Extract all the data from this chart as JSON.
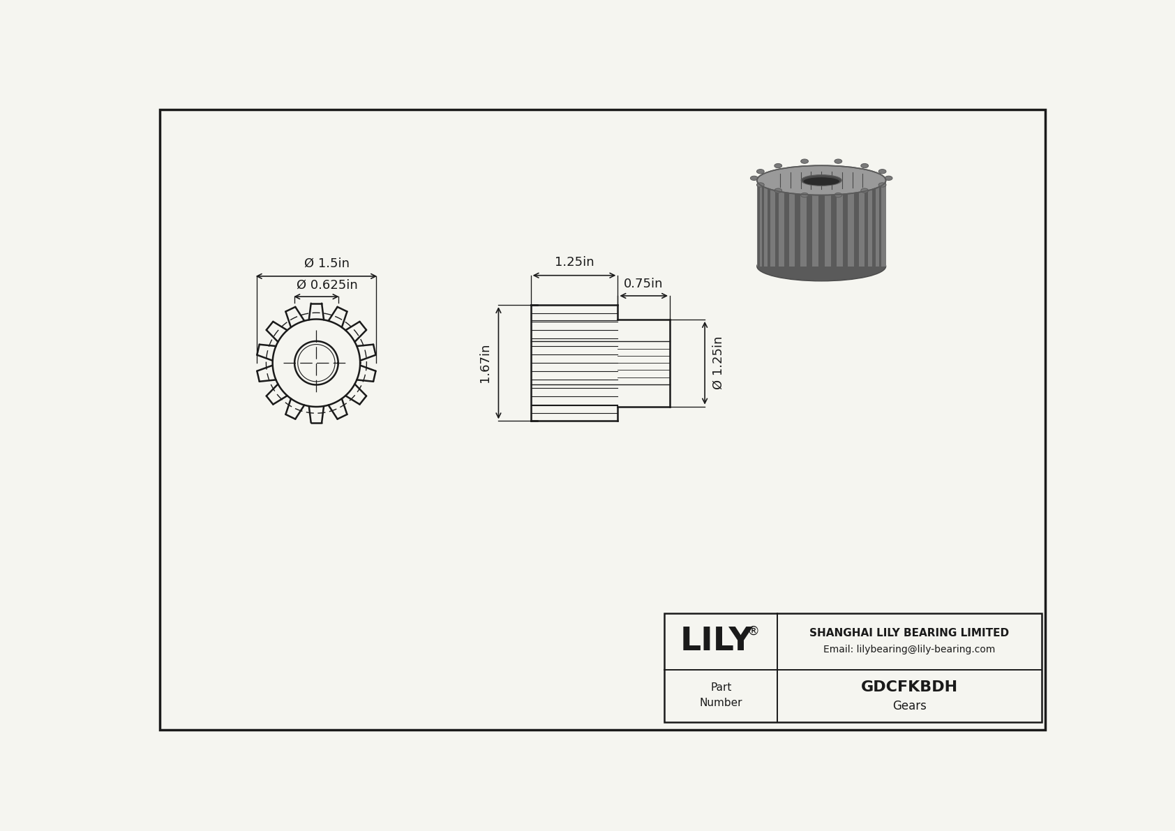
{
  "bg_color": "#f5f5f0",
  "line_color": "#1a1a1a",
  "title_company": "SHANGHAI LILY BEARING LIMITED",
  "title_email": "Email: lilybearing@lily-bearing.com",
  "part_number": "GDCFKBDH",
  "part_type": "Gears",
  "brand": "LILY",
  "dim_od": "Ø 1.5in",
  "dim_bore": "Ø 0.625in",
  "dim_height": "1.67in",
  "dim_hub_od": "Ø 1.25in",
  "dim_face_width": "1.25in",
  "dim_hub_length": "0.75in",
  "n_teeth": 14,
  "gear_color_light": "#9a9a9a",
  "gear_color_mid": "#7a7a7a",
  "gear_color_dark": "#5a5a5a",
  "gear_color_shadow": "#4a4a4a"
}
